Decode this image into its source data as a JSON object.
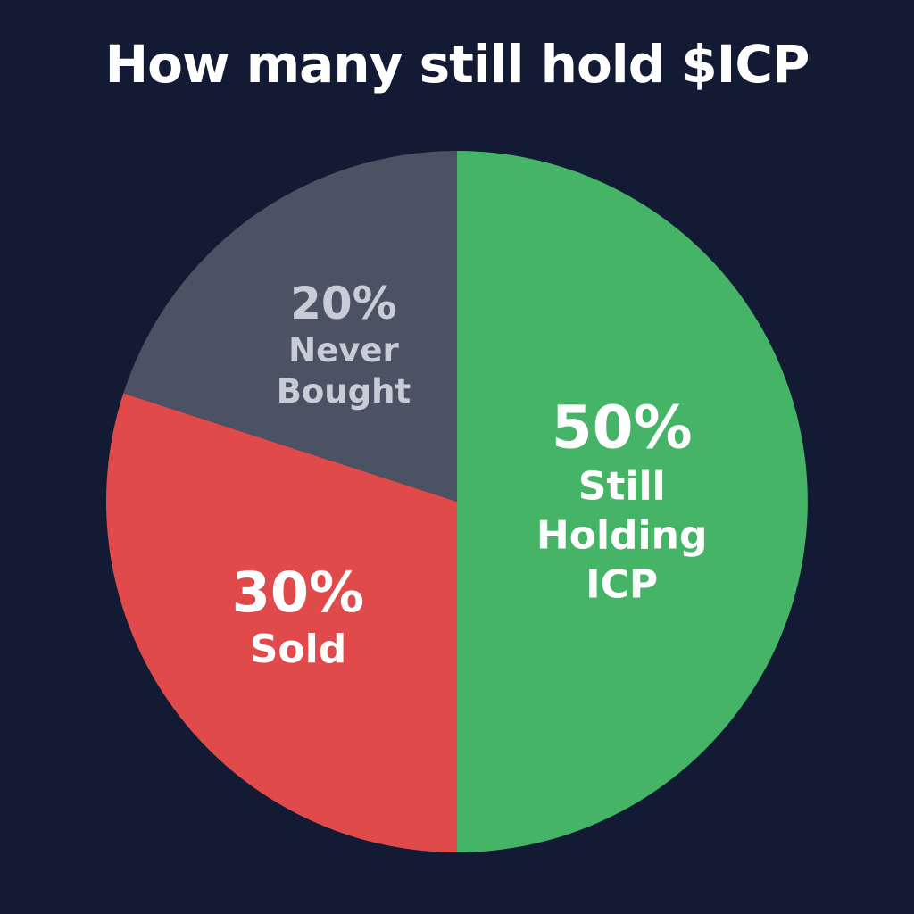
{
  "chart_data": {
    "type": "pie",
    "title": "How many still hold $ICP",
    "categories": [
      "Still Holding ICP",
      "Sold",
      "Never Bought"
    ],
    "values": [
      50,
      30,
      20
    ],
    "value_labels": [
      "50%",
      "30%",
      "20%"
    ],
    "colors": [
      "#45b467",
      "#e04a4b",
      "#4a5263"
    ]
  }
}
